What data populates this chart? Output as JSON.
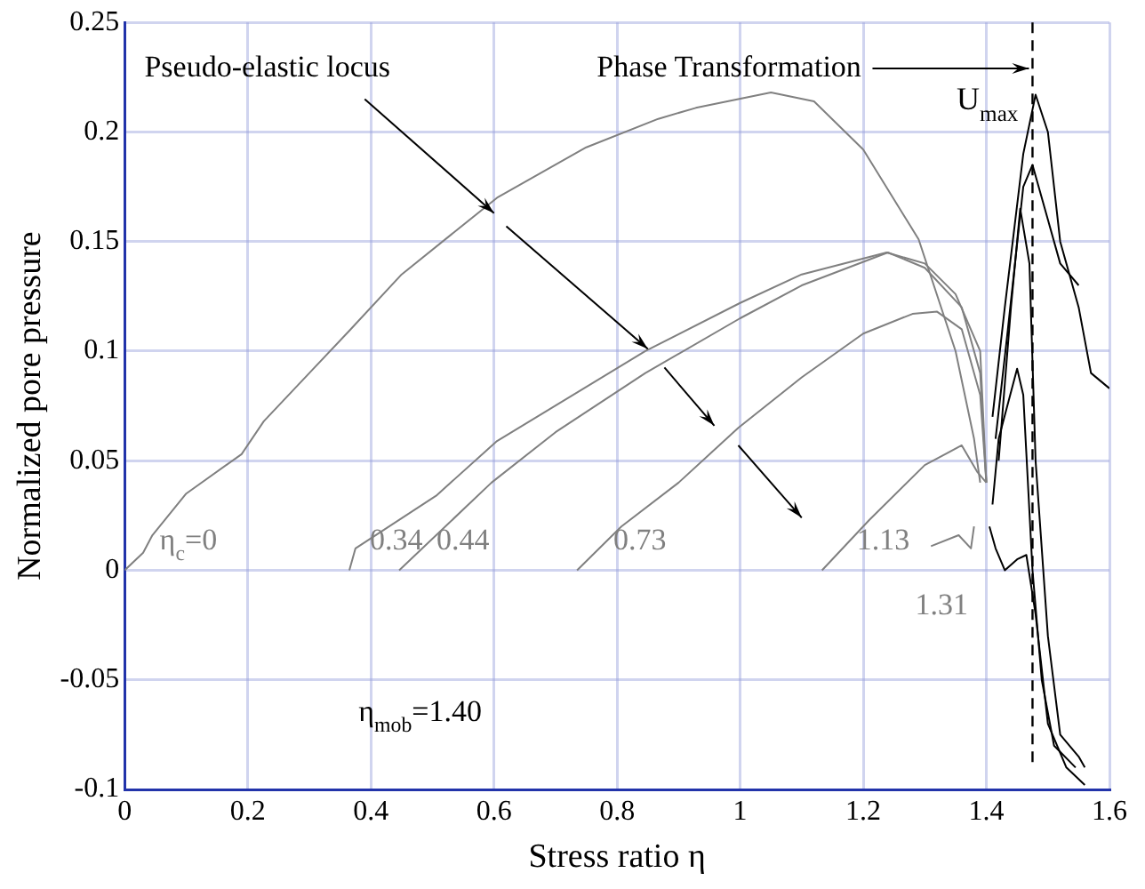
{
  "chart_data": {
    "type": "line",
    "xlabel": "Stress ratio η",
    "ylabel": "Normalized pore pressure",
    "xlim": [
      0,
      1.6
    ],
    "xticks": [
      0,
      0.2,
      0.4,
      0.6,
      0.8,
      1,
      1.2,
      1.4,
      1.6
    ],
    "ylim": [
      -0.1,
      0.25
    ],
    "yticks": [
      -0.1,
      -0.05,
      0,
      0.05,
      0.1,
      0.15,
      0.2,
      0.25
    ],
    "grid": true,
    "legend": false,
    "marker": "none",
    "line_style": "solid",
    "series": [
      {
        "name": "η$_{c}$=0",
        "color": "#808080",
        "x": [
          0,
          0.03,
          0.045,
          0.1,
          0.19,
          0.226,
          0.3,
          0.364,
          0.45,
          0.605,
          0.75,
          0.867,
          0.928,
          1.05,
          1.12,
          1.2,
          1.29,
          1.35,
          1.38,
          1.39
        ],
        "values": [
          0,
          0.008,
          0.016,
          0.035,
          0.053,
          0.068,
          0.09,
          0.109,
          0.135,
          0.17,
          0.193,
          0.206,
          0.211,
          0.218,
          0.214,
          0.192,
          0.151,
          0.1,
          0.06,
          0.04
        ]
      },
      {
        "name": "0.34",
        "color": "#808080",
        "x": [
          0.365,
          0.375,
          0.506,
          0.605,
          0.846,
          1.0,
          1.1,
          1.238,
          1.3,
          1.35,
          1.39,
          1.4
        ],
        "values": [
          0,
          0.01,
          0.034,
          0.059,
          0.1,
          0.122,
          0.135,
          0.145,
          0.14,
          0.126,
          0.1,
          0.04
        ]
      },
      {
        "name": "0.44",
        "color": "#808080",
        "x": [
          0.446,
          0.596,
          0.7,
          0.846,
          1.0,
          1.1,
          1.24,
          1.3,
          1.36,
          1.39,
          1.4
        ],
        "values": [
          0,
          0.04,
          0.063,
          0.09,
          0.115,
          0.13,
          0.145,
          0.138,
          0.12,
          0.09,
          0.04
        ]
      },
      {
        "name": "0.73",
        "color": "#808080",
        "x": [
          0.735,
          0.807,
          0.9,
          0.997,
          1.1,
          1.2,
          1.28,
          1.32,
          1.36,
          1.39,
          1.4
        ],
        "values": [
          0,
          0.02,
          0.04,
          0.065,
          0.088,
          0.108,
          0.117,
          0.118,
          0.11,
          0.08,
          0.04
        ]
      },
      {
        "name": "1.13",
        "color": "#808080",
        "x": [
          1.133,
          1.21,
          1.3,
          1.36,
          1.385,
          1.4
        ],
        "values": [
          0,
          0.023,
          0.048,
          0.057,
          0.045,
          0.04
        ]
      },
      {
        "name": "1.31",
        "color": "#808080",
        "x": [
          1.31,
          1.355,
          1.375,
          1.38
        ],
        "values": [
          0.011,
          0.016,
          0.01,
          0.02
        ]
      },
      {
        "color": "#000000",
        "x": [
          1.41,
          1.43,
          1.46,
          1.48,
          1.5,
          1.52,
          1.55,
          1.57,
          1.6
        ],
        "values": [
          0.07,
          0.12,
          0.19,
          0.217,
          0.2,
          0.15,
          0.12,
          0.09,
          0.083
        ]
      },
      {
        "color": "#000000",
        "x": [
          1.415,
          1.435,
          1.46,
          1.475,
          1.5,
          1.52,
          1.55
        ],
        "values": [
          0.06,
          0.11,
          0.175,
          0.185,
          0.16,
          0.14,
          0.13
        ]
      },
      {
        "color": "#000000",
        "x": [
          1.42,
          1.44,
          1.455,
          1.47,
          1.48,
          1.5,
          1.52,
          1.55,
          1.56
        ],
        "values": [
          0.05,
          0.12,
          0.165,
          0.14,
          0.05,
          -0.03,
          -0.075,
          -0.085,
          -0.09
        ]
      },
      {
        "color": "#000000",
        "x": [
          1.41,
          1.42,
          1.45,
          1.46,
          1.475,
          1.49,
          1.51,
          1.545
        ],
        "values": [
          0.03,
          0.06,
          0.092,
          0.08,
          0,
          -0.05,
          -0.08,
          -0.09
        ]
      },
      {
        "color": "#000000",
        "x": [
          1.405,
          1.415,
          1.43,
          1.45,
          1.465,
          1.48,
          1.5,
          1.53,
          1.56
        ],
        "values": [
          0.02,
          0.01,
          0,
          0.005,
          0.007,
          -0.02,
          -0.07,
          -0.09,
          -0.098
        ]
      }
    ],
    "ref_lines": [
      {
        "axis": "x",
        "value": 1.475,
        "label": "U$_{max}$",
        "color": "#000000",
        "line_style": "dashed"
      }
    ],
    "annotations": [
      "Pseudo-elastic locus",
      {
        "text": "Phase Transformation",
        "x": 1.475,
        "y": 0.229
      },
      "η$_{mob}$=1.40"
    ]
  }
}
